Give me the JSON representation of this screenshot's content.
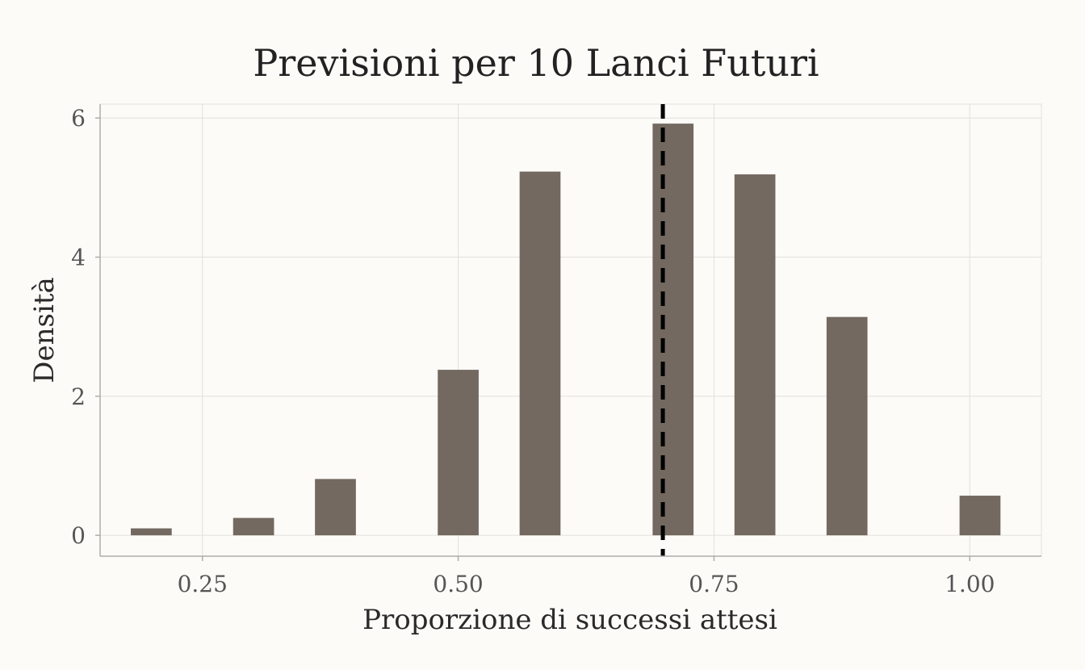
{
  "chart_data": {
    "type": "bar",
    "title": "Previsioni per 10 Lanci Futuri",
    "xlabel": "Proporzione di successi attesi",
    "ylabel": "Densità",
    "xlim": [
      0.15,
      1.07
    ],
    "ylim": [
      -0.3,
      6.2
    ],
    "x_ticks": [
      0.25,
      0.5,
      0.75,
      1.0
    ],
    "x_tick_labels": [
      "0.25",
      "0.50",
      "0.75",
      "1.00"
    ],
    "y_ticks": [
      0,
      2,
      4,
      6
    ],
    "y_tick_labels": [
      "0",
      "2",
      "4",
      "6"
    ],
    "bin_width": 0.04,
    "bins": [
      {
        "x": 0.2,
        "density": 0.1
      },
      {
        "x": 0.3,
        "density": 0.25
      },
      {
        "x": 0.38,
        "density": 0.81
      },
      {
        "x": 0.5,
        "density": 2.38
      },
      {
        "x": 0.58,
        "density": 5.23
      },
      {
        "x": 0.71,
        "density": 5.92
      },
      {
        "x": 0.79,
        "density": 5.19
      },
      {
        "x": 0.88,
        "density": 3.14
      },
      {
        "x": 1.01,
        "density": 0.57
      }
    ],
    "reference_line": {
      "x": 0.7,
      "style": "dashed",
      "color": "#000000"
    },
    "grid": true,
    "colors": {
      "background": "#fcfbf8",
      "bar": "#6b6157",
      "grid": "#e2e0dc",
      "axis": "#b0aeaa"
    }
  }
}
